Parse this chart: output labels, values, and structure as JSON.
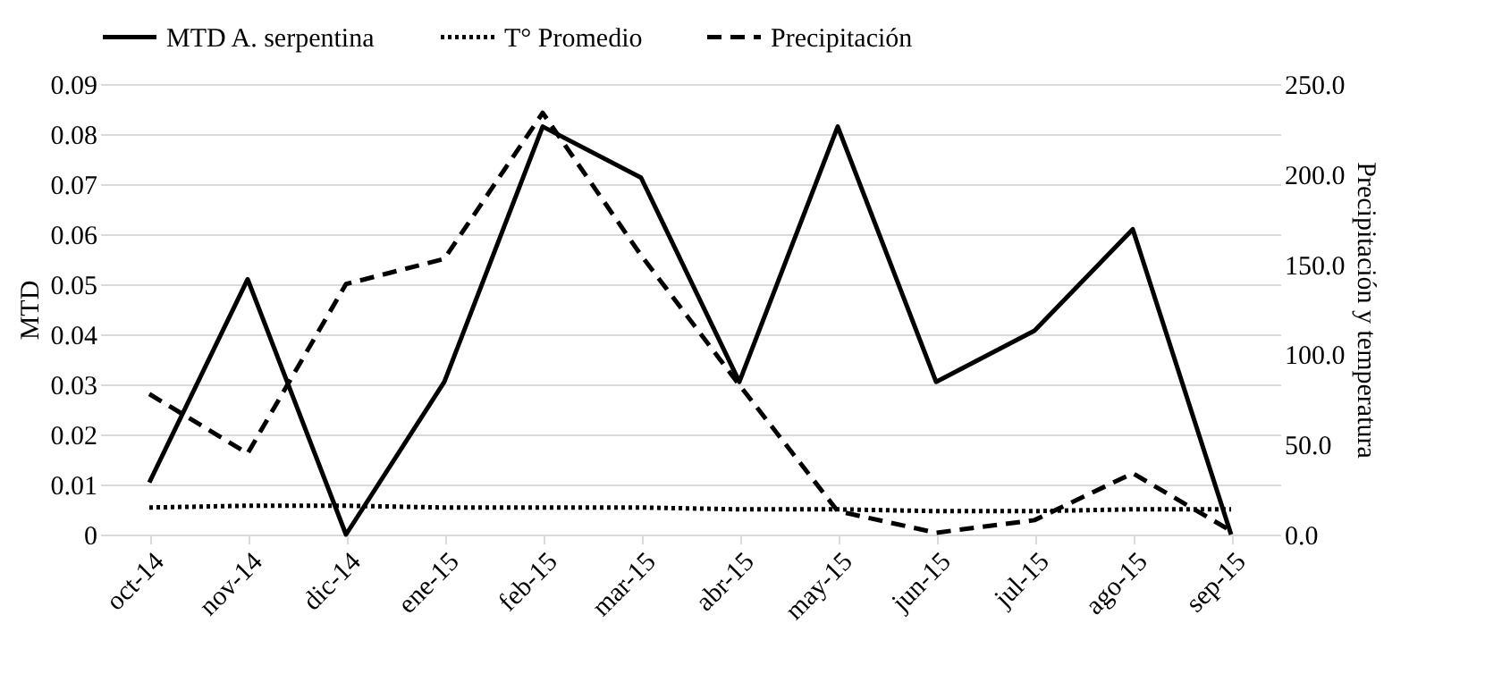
{
  "chart_data": {
    "type": "line",
    "ylabel": "MTD",
    "y2label": "Precipitación y temperatura",
    "categories": [
      "oct-14",
      "nov-14",
      "dic-14",
      "ene-15",
      "feb-15",
      "mar-15",
      "abr-15",
      "may-15",
      "jun-15",
      "jul-15",
      "ago-15",
      "sep-15"
    ],
    "series": [
      {
        "name": "MTD A. serpentina",
        "color": "#000000",
        "line_style": "solid",
        "values": [
          0.0104,
          0.051,
          0,
          0.0305,
          0.0815,
          0.0713,
          0.0305,
          0.0815,
          0.0305,
          0.0407,
          0.061,
          0
        ]
      },
      {
        "name": "T° Promedio",
        "color": "#000000",
        "line_style": "dotted",
        "axis": "y2",
        "values": [
          15,
          16,
          16,
          15,
          15,
          15,
          14,
          14,
          13,
          13,
          14,
          14
        ]
      },
      {
        "name": "Precipitación",
        "color": "#000000",
        "line_style": "dashed",
        "axis": "y2",
        "values": [
          78,
          45,
          139,
          153,
          234,
          155,
          83,
          13,
          1,
          8,
          34,
          2
        ]
      }
    ],
    "ylim": [
      0,
      0.09
    ],
    "yticks": [
      0,
      0.01,
      0.02,
      0.03,
      0.04,
      0.05,
      0.06,
      0.07,
      0.08,
      0.09
    ],
    "y2lim": [
      0,
      250
    ],
    "y2ticks": [
      {
        "value": 0,
        "label": "0.0"
      },
      {
        "value": 50,
        "label": "50.0"
      },
      {
        "value": 100,
        "label": "100.0"
      },
      {
        "value": 150,
        "label": "150.0"
      },
      {
        "value": 200,
        "label": "200.0"
      },
      {
        "value": 250,
        "label": "250.0"
      }
    ],
    "grid": "y",
    "legend": "top"
  }
}
